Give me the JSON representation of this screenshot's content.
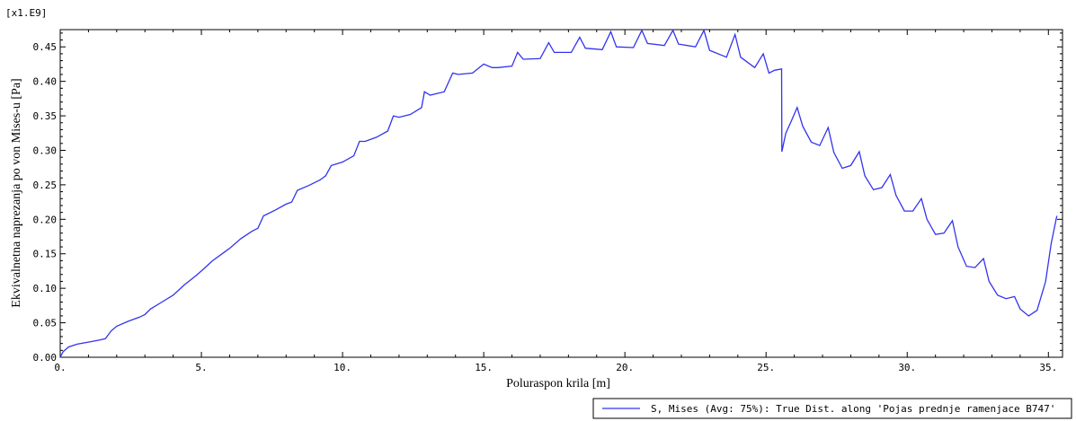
{
  "chart_data": {
    "type": "line",
    "xlabel": "Poluraspon krila [m]",
    "ylabel": "Ekvivalnetna naprezanja po von Mises-u [Pa]",
    "y_multiplier_label": "[x1.E9]",
    "xlim": [
      0,
      35.5
    ],
    "ylim": [
      0,
      0.475
    ],
    "x_ticks": [
      0,
      5,
      10,
      15,
      20,
      25,
      30,
      35
    ],
    "x_tick_labels": [
      "0.",
      "5.",
      "10.",
      "15.",
      "20.",
      "25.",
      "30.",
      "35."
    ],
    "y_ticks": [
      0,
      0.05,
      0.1,
      0.15,
      0.2,
      0.25,
      0.3,
      0.35,
      0.4,
      0.45
    ],
    "y_tick_labels": [
      "0.00",
      "0.05",
      "0.10",
      "0.15",
      "0.20",
      "0.25",
      "0.30",
      "0.35",
      "0.40",
      "0.45"
    ],
    "grid": false,
    "legend_position": "bottom-right",
    "series": [
      {
        "name": "S, Mises (Avg: 75%): True Dist. along 'Pojas prednje ramenjace B747'",
        "color": "#3333ee",
        "x": [
          0,
          0.1,
          0.3,
          0.6,
          1.0,
          1.4,
          1.6,
          1.8,
          2.0,
          2.4,
          2.8,
          3.0,
          3.2,
          3.6,
          4.0,
          4.4,
          4.8,
          5.0,
          5.4,
          5.8,
          6.0,
          6.4,
          6.8,
          7.0,
          7.2,
          7.6,
          8.0,
          8.2,
          8.4,
          8.8,
          9.2,
          9.4,
          9.6,
          10.0,
          10.4,
          10.6,
          10.8,
          11.2,
          11.6,
          11.8,
          12.0,
          12.4,
          12.8,
          12.9,
          13.1,
          13.6,
          13.9,
          14.1,
          14.6,
          15.0,
          15.3,
          15.5,
          16.0,
          16.2,
          16.4,
          17.0,
          17.3,
          17.5,
          18.1,
          18.4,
          18.6,
          19.2,
          19.5,
          19.7,
          20.3,
          20.6,
          20.8,
          21.4,
          21.7,
          21.9,
          22.5,
          22.8,
          23.0,
          23.6,
          23.9,
          24.1,
          24.6,
          24.9,
          25.1,
          25.3,
          25.55,
          25.56,
          25.7,
          25.9,
          26.1,
          26.3,
          26.6,
          26.9,
          27.2,
          27.4,
          27.7,
          28.0,
          28.3,
          28.5,
          28.8,
          29.1,
          29.4,
          29.6,
          29.9,
          30.2,
          30.5,
          30.7,
          31.0,
          31.3,
          31.6,
          31.8,
          32.1,
          32.4,
          32.7,
          32.9,
          33.2,
          33.5,
          33.8,
          34.0,
          34.3,
          34.6,
          34.9,
          35.1,
          35.3
        ],
        "y": [
          0.0,
          0.008,
          0.015,
          0.019,
          0.022,
          0.025,
          0.027,
          0.038,
          0.045,
          0.052,
          0.058,
          0.062,
          0.07,
          0.08,
          0.09,
          0.105,
          0.118,
          0.125,
          0.14,
          0.152,
          0.158,
          0.172,
          0.183,
          0.187,
          0.205,
          0.213,
          0.222,
          0.225,
          0.242,
          0.249,
          0.257,
          0.263,
          0.278,
          0.283,
          0.292,
          0.313,
          0.313,
          0.319,
          0.328,
          0.35,
          0.348,
          0.352,
          0.362,
          0.385,
          0.38,
          0.385,
          0.412,
          0.41,
          0.412,
          0.425,
          0.42,
          0.42,
          0.422,
          0.442,
          0.432,
          0.433,
          0.456,
          0.442,
          0.442,
          0.464,
          0.448,
          0.446,
          0.472,
          0.45,
          0.449,
          0.474,
          0.455,
          0.452,
          0.474,
          0.454,
          0.45,
          0.474,
          0.445,
          0.435,
          0.468,
          0.435,
          0.42,
          0.44,
          0.412,
          0.416,
          0.418,
          0.298,
          0.325,
          0.343,
          0.362,
          0.335,
          0.312,
          0.307,
          0.333,
          0.297,
          0.274,
          0.278,
          0.298,
          0.263,
          0.243,
          0.246,
          0.265,
          0.235,
          0.212,
          0.212,
          0.23,
          0.2,
          0.178,
          0.18,
          0.198,
          0.16,
          0.132,
          0.13,
          0.143,
          0.11,
          0.09,
          0.085,
          0.088,
          0.07,
          0.06,
          0.068,
          0.11,
          0.165,
          0.205
        ]
      }
    ]
  }
}
